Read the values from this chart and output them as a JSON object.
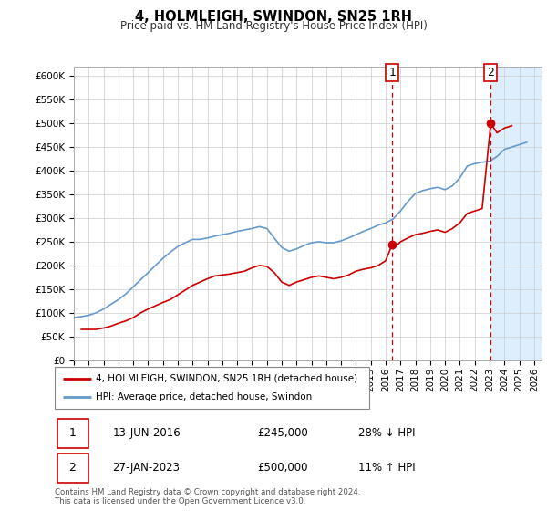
{
  "title": "4, HOLMLEIGH, SWINDON, SN25 1RH",
  "subtitle": "Price paid vs. HM Land Registry's House Price Index (HPI)",
  "ylim": [
    0,
    620000
  ],
  "xlim_start": 1995.0,
  "xlim_end": 2026.5,
  "yticks": [
    0,
    50000,
    100000,
    150000,
    200000,
    250000,
    300000,
    350000,
    400000,
    450000,
    500000,
    550000,
    600000
  ],
  "ytick_labels": [
    "£0",
    "£50K",
    "£100K",
    "£150K",
    "£200K",
    "£250K",
    "£300K",
    "£350K",
    "£400K",
    "£450K",
    "£500K",
    "£550K",
    "£600K"
  ],
  "xticks": [
    1995,
    1996,
    1997,
    1998,
    1999,
    2000,
    2001,
    2002,
    2003,
    2004,
    2005,
    2006,
    2007,
    2008,
    2009,
    2010,
    2011,
    2012,
    2013,
    2014,
    2015,
    2016,
    2017,
    2018,
    2019,
    2020,
    2021,
    2022,
    2023,
    2024,
    2025,
    2026
  ],
  "event1_x": 2016.45,
  "event1_y": 245000,
  "event1_label": "1",
  "event2_x": 2023.08,
  "event2_y": 500000,
  "event2_label": "2",
  "legend_line1": "4, HOLMLEIGH, SWINDON, SN25 1RH (detached house)",
  "legend_line2": "HPI: Average price, detached house, Swindon",
  "table_row1_num": "1",
  "table_row1_date": "13-JUN-2016",
  "table_row1_price": "£245,000",
  "table_row1_hpi": "28% ↓ HPI",
  "table_row2_num": "2",
  "table_row2_date": "27-JAN-2023",
  "table_row2_price": "£500,000",
  "table_row2_hpi": "11% ↑ HPI",
  "footer": "Contains HM Land Registry data © Crown copyright and database right 2024.\nThis data is licensed under the Open Government Licence v3.0.",
  "line_red_color": "#cc0000",
  "line_blue_color": "#6699cc",
  "shade_color": "#ddeeff",
  "grid_color": "#cccccc",
  "event_box_color": "#cc0000",
  "hpi_red_data_x": [
    1995.5,
    1996.0,
    1996.5,
    1997.0,
    1997.5,
    1998.0,
    1998.5,
    1999.0,
    1999.5,
    2000.0,
    2000.5,
    2001.0,
    2001.5,
    2002.0,
    2002.5,
    2003.0,
    2003.5,
    2004.0,
    2004.5,
    2005.0,
    2005.5,
    2006.0,
    2006.5,
    2007.0,
    2007.5,
    2008.0,
    2008.5,
    2009.0,
    2009.5,
    2010.0,
    2010.5,
    2011.0,
    2011.5,
    2012.0,
    2012.5,
    2013.0,
    2013.5,
    2014.0,
    2014.5,
    2015.0,
    2015.5,
    2016.0,
    2016.45,
    2016.5,
    2017.0,
    2017.5,
    2018.0,
    2018.5,
    2019.0,
    2019.5,
    2020.0,
    2020.5,
    2021.0,
    2021.5,
    2022.0,
    2022.5,
    2023.08,
    2023.5,
    2024.0,
    2024.5
  ],
  "hpi_red_data_y": [
    65000,
    65000,
    65000,
    68000,
    72000,
    78000,
    83000,
    90000,
    100000,
    108000,
    115000,
    122000,
    128000,
    138000,
    148000,
    158000,
    165000,
    172000,
    178000,
    180000,
    182000,
    185000,
    188000,
    195000,
    200000,
    198000,
    185000,
    165000,
    158000,
    165000,
    170000,
    175000,
    178000,
    175000,
    172000,
    175000,
    180000,
    188000,
    192000,
    195000,
    200000,
    210000,
    245000,
    235000,
    250000,
    258000,
    265000,
    268000,
    272000,
    275000,
    270000,
    278000,
    290000,
    310000,
    315000,
    320000,
    500000,
    480000,
    490000,
    495000
  ],
  "hpi_blue_data_x": [
    1995.0,
    1995.5,
    1996.0,
    1996.5,
    1997.0,
    1997.5,
    1998.0,
    1998.5,
    1999.0,
    1999.5,
    2000.0,
    2000.5,
    2001.0,
    2001.5,
    2002.0,
    2002.5,
    2003.0,
    2003.5,
    2004.0,
    2004.5,
    2005.0,
    2005.5,
    2006.0,
    2006.5,
    2007.0,
    2007.5,
    2008.0,
    2008.5,
    2009.0,
    2009.5,
    2010.0,
    2010.5,
    2011.0,
    2011.5,
    2012.0,
    2012.5,
    2013.0,
    2013.5,
    2014.0,
    2014.5,
    2015.0,
    2015.5,
    2016.0,
    2016.5,
    2017.0,
    2017.5,
    2018.0,
    2018.5,
    2019.0,
    2019.5,
    2020.0,
    2020.5,
    2021.0,
    2021.5,
    2022.0,
    2022.5,
    2023.0,
    2023.5,
    2024.0,
    2024.5,
    2025.0,
    2025.5
  ],
  "hpi_blue_data_y": [
    90000,
    92000,
    95000,
    100000,
    108000,
    118000,
    128000,
    140000,
    155000,
    170000,
    185000,
    200000,
    215000,
    228000,
    240000,
    248000,
    255000,
    255000,
    258000,
    262000,
    265000,
    268000,
    272000,
    275000,
    278000,
    282000,
    278000,
    258000,
    238000,
    230000,
    235000,
    242000,
    248000,
    250000,
    248000,
    248000,
    252000,
    258000,
    265000,
    272000,
    278000,
    285000,
    290000,
    298000,
    315000,
    335000,
    352000,
    358000,
    362000,
    365000,
    360000,
    368000,
    385000,
    410000,
    415000,
    418000,
    420000,
    430000,
    445000,
    450000,
    455000,
    460000
  ]
}
